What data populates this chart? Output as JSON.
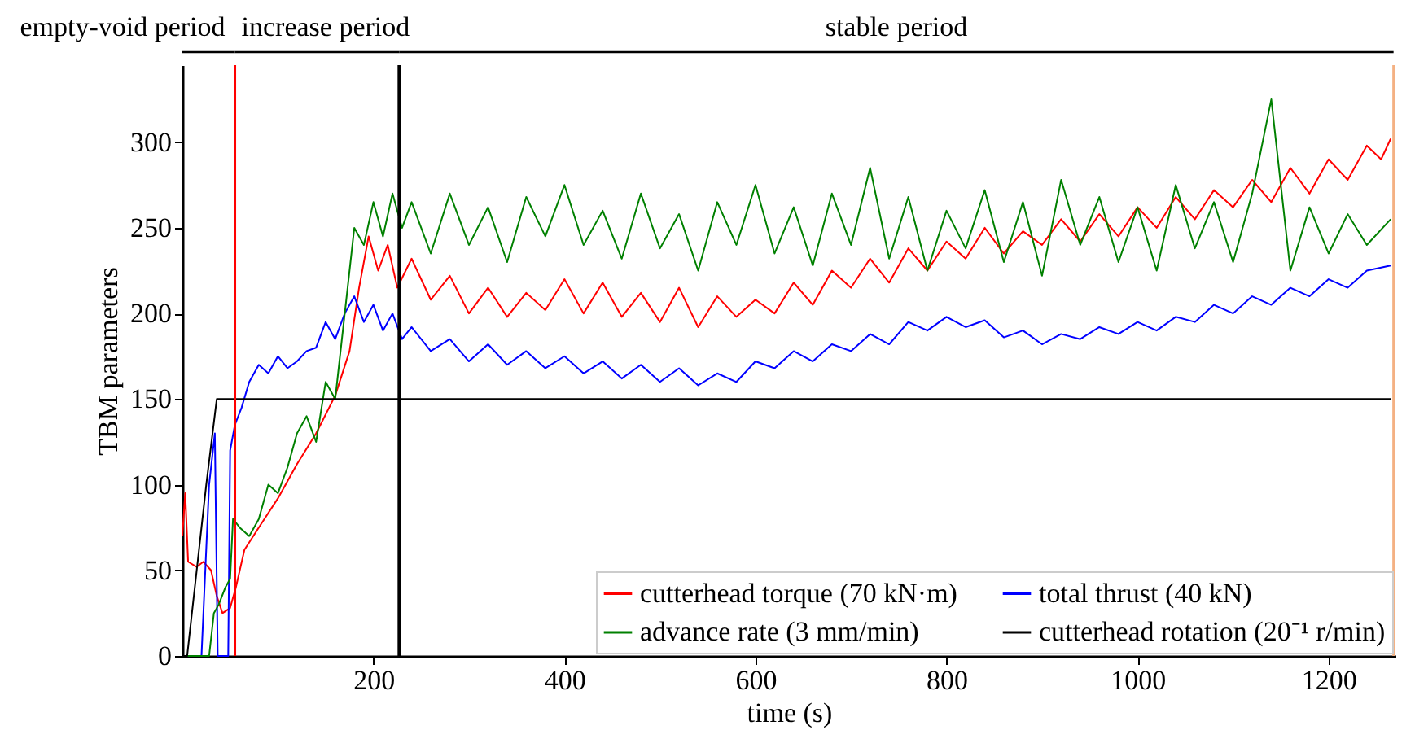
{
  "chart_data": {
    "type": "line",
    "xlabel": "time (s)",
    "ylabel": "TBM parameters",
    "xlim": [
      0,
      1270
    ],
    "xticks": [
      200,
      400,
      600,
      800,
      1000,
      1200
    ],
    "ylim": [
      0,
      345
    ],
    "yticks": [
      0,
      50,
      100,
      150,
      200,
      250,
      300
    ],
    "grid": false,
    "legend": "bottom right",
    "marker": "none",
    "line_style": "solid",
    "annotations": [
      "empty-void period",
      "increase period",
      "stable period"
    ],
    "ref_lines": [
      {
        "axis": "x",
        "value": 55,
        "color": "#ff0000"
      },
      {
        "axis": "x",
        "value": 227,
        "color": "#000000"
      },
      {
        "axis": "x",
        "value": 1268,
        "color": "#f4b183"
      }
    ],
    "series": [
      {
        "name": "cutterhead torque (70 kN·m)",
        "color": "#ff0000",
        "x": [
          0,
          3,
          6,
          15,
          22,
          30,
          36,
          42,
          50,
          56,
          65,
          80,
          100,
          120,
          140,
          160,
          175,
          185,
          195,
          205,
          215,
          225,
          240,
          260,
          280,
          300,
          320,
          340,
          360,
          380,
          400,
          420,
          440,
          460,
          480,
          500,
          520,
          540,
          560,
          580,
          600,
          620,
          640,
          660,
          680,
          700,
          720,
          740,
          760,
          780,
          800,
          820,
          840,
          860,
          880,
          900,
          920,
          940,
          960,
          980,
          1000,
          1020,
          1040,
          1060,
          1080,
          1100,
          1120,
          1140,
          1160,
          1180,
          1200,
          1220,
          1240,
          1255,
          1265
        ],
        "values": [
          70,
          95,
          55,
          52,
          55,
          50,
          35,
          25,
          28,
          40,
          62,
          75,
          92,
          112,
          130,
          152,
          178,
          215,
          245,
          225,
          240,
          215,
          232,
          208,
          222,
          200,
          215,
          198,
          212,
          202,
          220,
          200,
          218,
          198,
          212,
          195,
          215,
          192,
          210,
          198,
          208,
          200,
          218,
          205,
          225,
          215,
          232,
          218,
          238,
          225,
          242,
          232,
          250,
          235,
          248,
          240,
          255,
          242,
          258,
          245,
          262,
          250,
          268,
          255,
          272,
          262,
          278,
          265,
          285,
          270,
          290,
          278,
          298,
          290,
          302
        ]
      },
      {
        "name": "total thrust (40 kN)",
        "color": "#0000ff",
        "x": [
          0,
          12,
          20,
          28,
          34,
          37,
          40,
          48,
          50,
          55,
          62,
          70,
          80,
          90,
          100,
          110,
          120,
          130,
          140,
          150,
          160,
          170,
          180,
          190,
          200,
          210,
          220,
          230,
          240,
          260,
          280,
          300,
          320,
          340,
          360,
          380,
          400,
          420,
          440,
          460,
          480,
          500,
          520,
          540,
          560,
          580,
          600,
          620,
          640,
          660,
          680,
          700,
          720,
          740,
          760,
          780,
          800,
          820,
          840,
          860,
          880,
          900,
          920,
          940,
          960,
          980,
          1000,
          1020,
          1040,
          1060,
          1080,
          1100,
          1120,
          1140,
          1160,
          1180,
          1200,
          1220,
          1240,
          1265
        ],
        "values": [
          0,
          0,
          0,
          100,
          130,
          0,
          0,
          0,
          120,
          135,
          145,
          160,
          170,
          165,
          175,
          168,
          172,
          178,
          180,
          195,
          185,
          200,
          210,
          195,
          205,
          190,
          200,
          185,
          192,
          178,
          185,
          172,
          182,
          170,
          178,
          168,
          175,
          165,
          172,
          162,
          170,
          160,
          168,
          158,
          165,
          160,
          172,
          168,
          178,
          172,
          182,
          178,
          188,
          182,
          195,
          190,
          198,
          192,
          196,
          186,
          190,
          182,
          188,
          185,
          192,
          188,
          195,
          190,
          198,
          195,
          205,
          200,
          210,
          205,
          215,
          210,
          220,
          215,
          225,
          228
        ]
      },
      {
        "name": "advance rate (3 mm/min)",
        "color": "#008000",
        "x": [
          0,
          28,
          33,
          38,
          45,
          50,
          53,
          60,
          70,
          80,
          90,
          100,
          110,
          120,
          130,
          140,
          150,
          160,
          170,
          180,
          190,
          200,
          210,
          220,
          230,
          240,
          260,
          280,
          300,
          320,
          340,
          360,
          380,
          400,
          420,
          440,
          460,
          480,
          500,
          520,
          540,
          560,
          580,
          600,
          620,
          640,
          660,
          680,
          700,
          720,
          740,
          760,
          780,
          800,
          820,
          840,
          860,
          880,
          900,
          920,
          940,
          960,
          980,
          1000,
          1020,
          1040,
          1060,
          1080,
          1100,
          1120,
          1140,
          1160,
          1180,
          1200,
          1220,
          1240,
          1265
        ],
        "values": [
          0,
          0,
          25,
          30,
          40,
          45,
          80,
          75,
          70,
          80,
          100,
          95,
          110,
          130,
          140,
          125,
          160,
          150,
          200,
          250,
          240,
          265,
          245,
          270,
          250,
          265,
          235,
          270,
          240,
          262,
          230,
          268,
          245,
          275,
          240,
          260,
          232,
          270,
          238,
          258,
          225,
          265,
          240,
          275,
          235,
          262,
          228,
          270,
          240,
          285,
          232,
          268,
          225,
          260,
          238,
          272,
          230,
          265,
          222,
          278,
          240,
          268,
          230,
          262,
          225,
          275,
          238,
          265,
          230,
          270,
          325,
          225,
          262,
          235,
          258,
          240,
          255
        ]
      },
      {
        "name": "cutterhead rotation (20⁻¹ r/min)",
        "color": "#000000",
        "x": [
          0,
          5,
          15,
          25,
          36,
          1265
        ],
        "values": [
          0,
          0,
          50,
          100,
          150,
          150
        ]
      }
    ]
  }
}
